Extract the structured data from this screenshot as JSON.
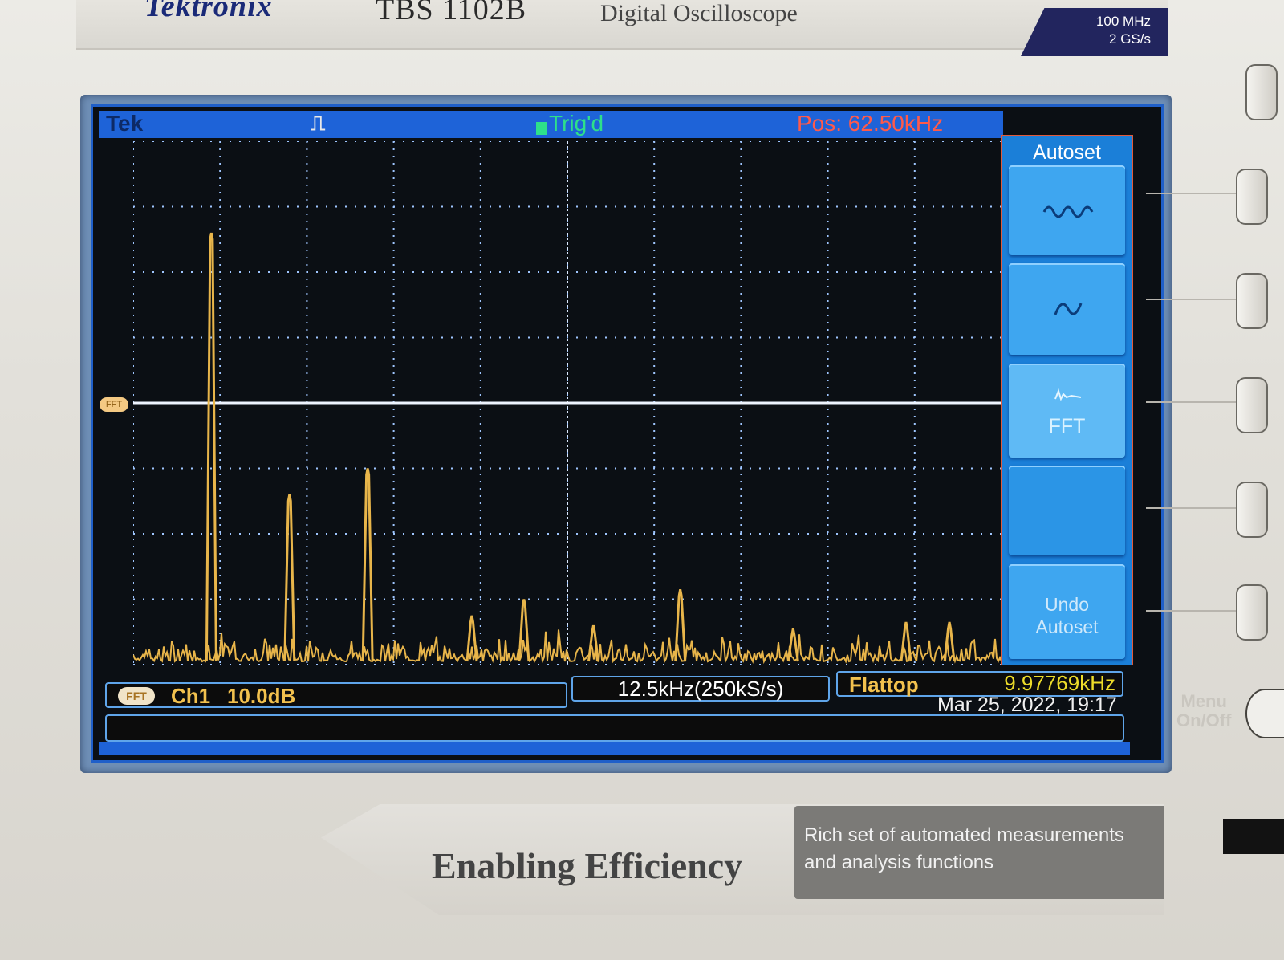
{
  "device": {
    "brand": "Tektronix",
    "model": "TBS 1102B",
    "description": "Digital Oscilloscope",
    "spec_bandwidth": "100 MHz",
    "spec_sample_rate": "2 GS/s"
  },
  "status_bar": {
    "logo": "Tek",
    "trigger_status": "Trig'd",
    "position": "Pos: 62.50kHz"
  },
  "trace_marker": "FFT",
  "menu": {
    "title": "Autoset",
    "buttons": [
      {
        "icon": "multi-cycle-wave-icon"
      },
      {
        "icon": "single-cycle-wave-icon"
      },
      {
        "icon": "fft-spectrum-icon",
        "label": "FFT"
      },
      {
        "icon": "",
        "label": ""
      },
      {
        "label": "Undo\nAutoset"
      }
    ]
  },
  "bottom_status": {
    "mode_pill": "FFT",
    "channel": "Ch1",
    "scale": "10.0dB",
    "span": "12.5kHz(250kS/s)",
    "window": "Flattop",
    "frequency": "9.97769kHz",
    "datetime": "Mar 25, 2022, 19:17"
  },
  "side_panel": {
    "menu_onoff_label": "Menu\nOn/Off"
  },
  "bottom_panel": {
    "tagline": "Enabling Efficiency",
    "feature_line1": "Rich set of automated measurements",
    "feature_line2": "and analysis functions"
  },
  "chart_data": {
    "type": "line",
    "x_grid_divisions": 10,
    "y_grid_divisions": 8,
    "trace_color": "#e8b54a",
    "grid_color": "#9fc6ff",
    "peaks": [
      {
        "x_div": 0.9,
        "y_div": 6.6
      },
      {
        "x_div": 1.8,
        "y_div": 2.6
      },
      {
        "x_div": 2.7,
        "y_div": 3.0
      },
      {
        "x_div": 3.9,
        "y_div": 0.75
      },
      {
        "x_div": 4.5,
        "y_div": 1.0
      },
      {
        "x_div": 5.3,
        "y_div": 0.6
      },
      {
        "x_div": 6.3,
        "y_div": 1.15
      },
      {
        "x_div": 7.6,
        "y_div": 0.55
      },
      {
        "x_div": 8.9,
        "y_div": 0.65
      },
      {
        "x_div": 9.4,
        "y_div": 0.65
      }
    ]
  }
}
